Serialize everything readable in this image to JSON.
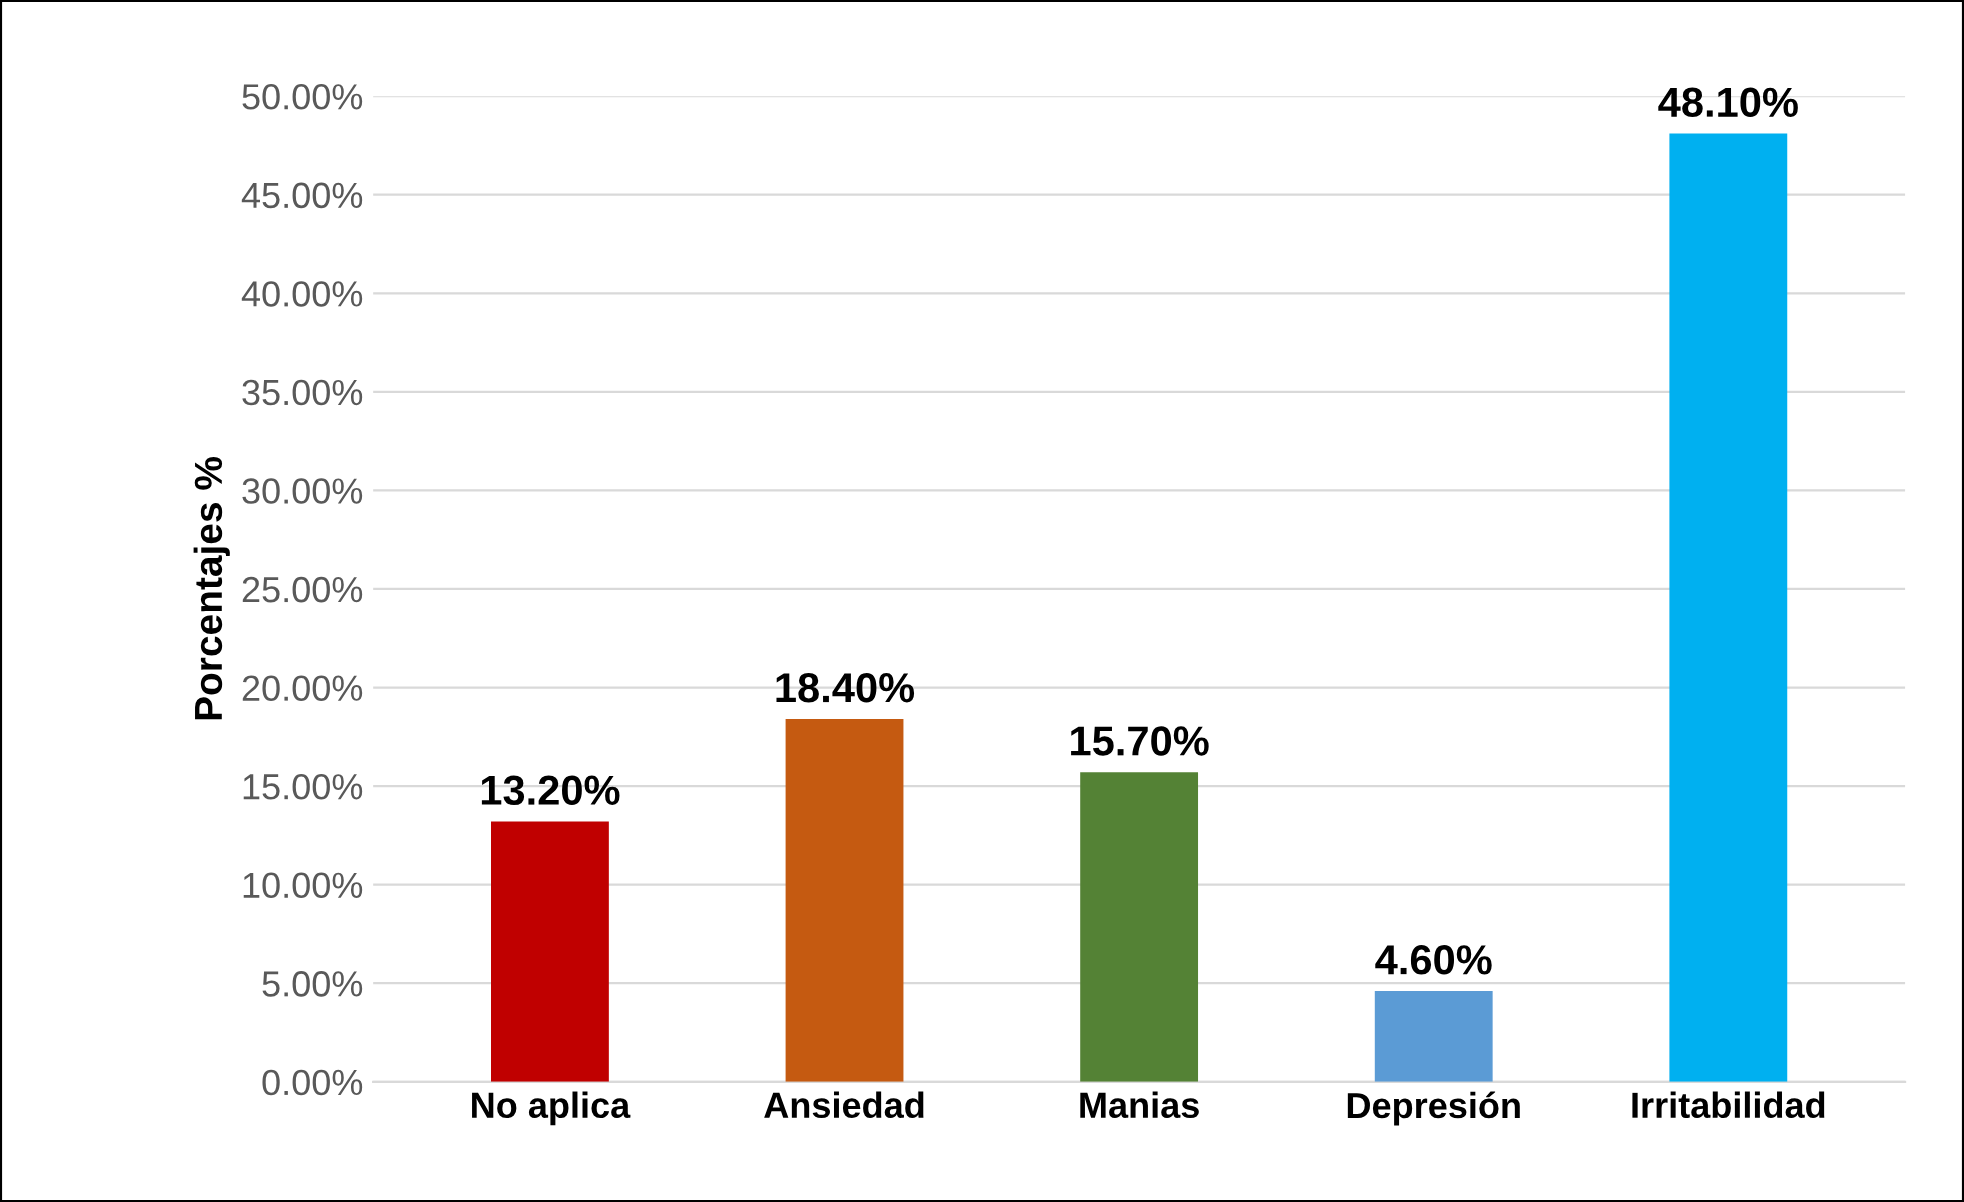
{
  "chart_data": {
    "type": "bar",
    "ylabel": "Porcentajes %",
    "categories": [
      "No aplica",
      "Ansiedad",
      "Manias",
      "Depresión",
      "Irritabilidad"
    ],
    "values": [
      13.2,
      18.4,
      15.7,
      4.6,
      48.1
    ],
    "colors": [
      "#c00000",
      "#c55a11",
      "#548235",
      "#5b9bd5",
      "#00b0f0"
    ],
    "value_labels": [
      "13.20%",
      "18.40%",
      "15.70%",
      "4.60%",
      "48.10%"
    ],
    "ylim": [
      0,
      50
    ],
    "yticks": [
      {
        "value": 0,
        "label": "0.00%"
      },
      {
        "value": 5,
        "label": "5.00%"
      },
      {
        "value": 10,
        "label": "10.00%"
      },
      {
        "value": 15,
        "label": "15.00%"
      },
      {
        "value": 20,
        "label": "20.00%"
      },
      {
        "value": 25,
        "label": "25.00%"
      },
      {
        "value": 30,
        "label": "30.00%"
      },
      {
        "value": 35,
        "label": "35.00%"
      },
      {
        "value": 40,
        "label": "40.00%"
      },
      {
        "value": 45,
        "label": "45.00%"
      },
      {
        "value": 50,
        "label": "50.00%"
      }
    ],
    "grid": "y",
    "legend": false
  }
}
